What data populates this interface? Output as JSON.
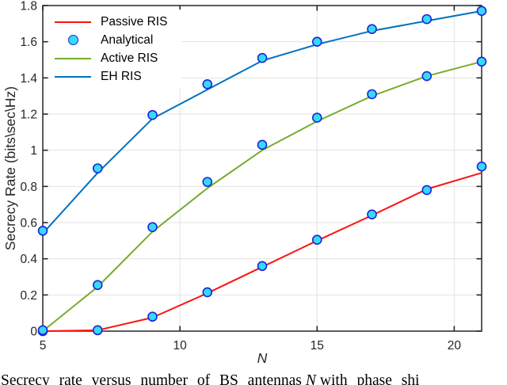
{
  "figure": {
    "ylabel": "Secrecy Rate (bits\\sec\\Hz)",
    "xlabel": "N"
  },
  "legend": {
    "position": "top-left",
    "items": [
      {
        "label": "Passive RIS",
        "swatch": "line",
        "color": "#fb1410"
      },
      {
        "label": "Analytical",
        "swatch": "marker",
        "face_color": "#33dbf3",
        "edge_color": "#2121dd"
      },
      {
        "label": "Active RIS",
        "swatch": "line",
        "color": "#77ac30"
      },
      {
        "label": "EH RIS",
        "swatch": "line",
        "color": "#0072bd"
      }
    ]
  },
  "caption": {
    "prefix": "Secrecy rate versus number of BS antennas",
    "variable": "N",
    "suffix": "with phase shi"
  },
  "chart_data": {
    "type": "line",
    "title": "",
    "xlabel": "N",
    "ylabel": "Secrecy Rate (bits\\sec\\Hz)",
    "xlim": [
      5,
      21
    ],
    "ylim": [
      0,
      1.8
    ],
    "x_ticks": [
      "5",
      "10",
      "15",
      "20"
    ],
    "y_ticks": [
      "0",
      "0.2",
      "0.4",
      "0.6",
      "0.8",
      "1",
      "1.2",
      "1.4",
      "1.6",
      "1.8"
    ],
    "grid": true,
    "grid_color": "#e2e2e2",
    "axis_color": "#262626",
    "x": [
      5,
      7,
      9,
      11,
      13,
      15,
      17,
      19,
      21
    ],
    "series": [
      {
        "name": "Passive RIS",
        "type": "line",
        "color": "#fb1410",
        "values": [
          0,
          0.005,
          0.075,
          0.21,
          0.355,
          0.5,
          0.64,
          0.785,
          0.875
        ]
      },
      {
        "name": "Active RIS",
        "type": "line",
        "color": "#77ac30",
        "values": [
          0,
          0.245,
          0.55,
          0.79,
          1.0,
          1.16,
          1.3,
          1.41,
          1.49
        ]
      },
      {
        "name": "EH RIS",
        "type": "line",
        "color": "#0072bd",
        "values": [
          0.54,
          0.875,
          1.175,
          1.335,
          1.495,
          1.585,
          1.66,
          1.715,
          1.77
        ]
      }
    ],
    "analytical_markers": {
      "name": "Analytical",
      "marker": "circle",
      "face_color": "#33dbf3",
      "edge_color": "#2121dd",
      "values_by_series": {
        "Passive RIS": [
          0,
          0.005,
          0.08,
          0.215,
          0.36,
          0.505,
          0.645,
          0.78,
          0.91
        ],
        "Active RIS": [
          0.005,
          0.255,
          0.575,
          0.825,
          1.03,
          1.18,
          1.31,
          1.41,
          1.49
        ],
        "EH RIS": [
          0.555,
          0.9,
          1.195,
          1.365,
          1.51,
          1.6,
          1.67,
          1.725,
          1.77
        ]
      }
    }
  }
}
